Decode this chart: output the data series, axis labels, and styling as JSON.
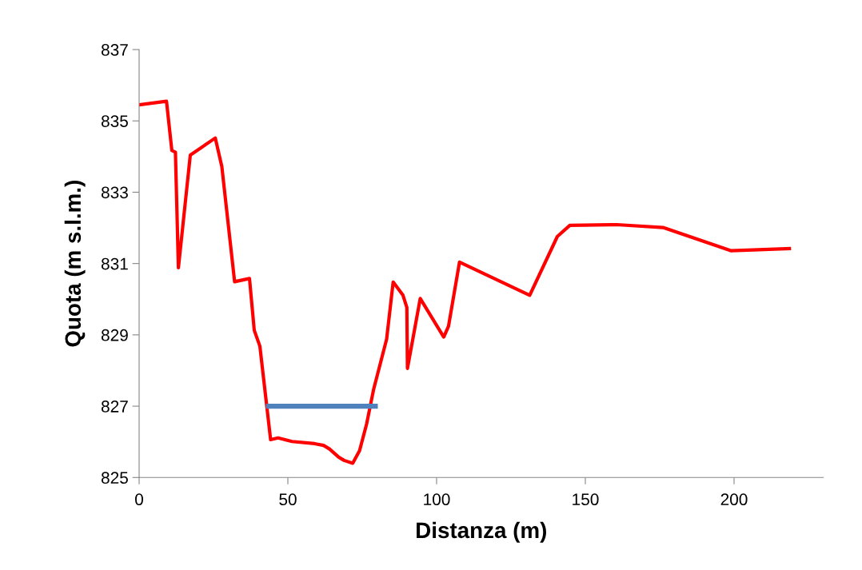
{
  "chart_data": {
    "type": "line",
    "xlabel": "Distanza (m)",
    "ylabel": "Quota (m s.l.m.)",
    "xlim": [
      0,
      230
    ],
    "xticks": [
      0,
      50,
      100,
      150,
      200
    ],
    "ylim": [
      825,
      837
    ],
    "yticks": [
      825,
      827,
      829,
      831,
      833,
      835,
      837
    ],
    "grid": false,
    "marker": "none",
    "line_style": "solid",
    "series": [
      {
        "color": "#ff0000",
        "x": [
          0,
          9.2,
          11.0,
          12.2,
          13.2,
          17.2,
          25.6,
          27.8,
          32.1,
          37.1,
          38.7,
          40.6,
          44.2,
          46.7,
          51.4,
          59.0,
          62.0,
          64.0,
          67.1,
          68.9,
          71.8,
          74.1,
          76.5,
          78.8,
          83.2,
          85.4,
          88.7,
          90.0,
          90.2,
          94.5,
          102.4,
          104.0,
          107.7,
          131.3,
          140.6,
          144.8,
          160.6,
          176.1,
          198.9,
          218.6
        ],
        "values": [
          835.45,
          835.55,
          834.17,
          834.12,
          830.88,
          834.04,
          834.52,
          833.72,
          830.49,
          830.58,
          829.13,
          828.68,
          826.06,
          826.11,
          826.01,
          825.95,
          825.9,
          825.8,
          825.57,
          825.48,
          825.4,
          825.75,
          826.51,
          827.46,
          828.88,
          830.48,
          830.11,
          829.77,
          828.06,
          830.02,
          828.94,
          829.24,
          831.04,
          830.11,
          831.76,
          832.07,
          832.09,
          832.01,
          831.36,
          831.42
        ]
      },
      {
        "color": "#4f81bd",
        "x": [
          43.5,
          79.4
        ],
        "values": [
          827,
          827
        ]
      }
    ]
  }
}
